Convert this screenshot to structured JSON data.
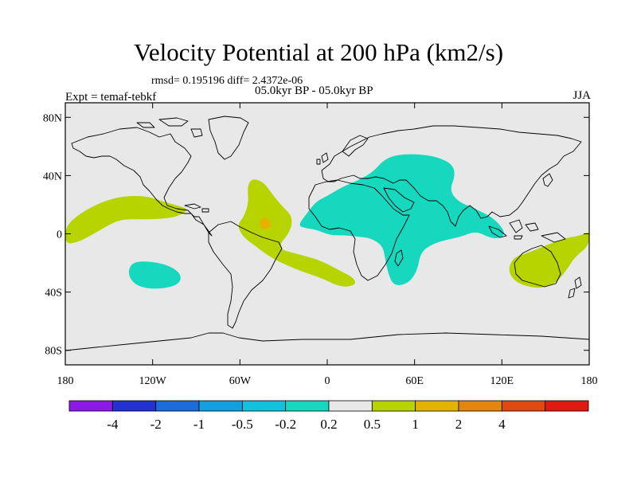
{
  "title": "Velocity Potential at 200 hPa (km2/s)",
  "stats": "rmsd= 0.195196 diff= 2.4372e-06",
  "experiment": "Expt = temaf-tebkf",
  "period": "05.0kyr BP - 05.0kyr BP",
  "season": "JJA",
  "map": {
    "lon_range": [
      -180,
      180
    ],
    "lat_range": [
      -90,
      90
    ],
    "lon_ticks": [
      {
        "value": -180,
        "label": "180"
      },
      {
        "value": -120,
        "label": "120W"
      },
      {
        "value": -60,
        "label": "60W"
      },
      {
        "value": 0,
        "label": "0"
      },
      {
        "value": 60,
        "label": "60E"
      },
      {
        "value": 120,
        "label": "120E"
      },
      {
        "value": 180,
        "label": "180"
      }
    ],
    "lat_ticks": [
      {
        "value": 80,
        "label": "80N"
      },
      {
        "value": 40,
        "label": "40N"
      },
      {
        "value": 0,
        "label": "0"
      },
      {
        "value": -40,
        "label": "40S"
      },
      {
        "value": -80,
        "label": "80S"
      }
    ],
    "background_color": "#e8e8e8",
    "coast_color": "#000000",
    "contour_regions": [
      {
        "name": "western-pacific-positive",
        "level": "0.2 to 0.5",
        "color": "#b8d400",
        "points": [
          [
            -180,
            5
          ],
          [
            -170,
            14
          ],
          [
            -155,
            22
          ],
          [
            -140,
            26
          ],
          [
            -125,
            26
          ],
          [
            -115,
            23
          ],
          [
            -102,
            19
          ],
          [
            -95,
            17
          ],
          [
            -102,
            12
          ],
          [
            -115,
            10
          ],
          [
            -128,
            10
          ],
          [
            -142,
            10
          ],
          [
            -152,
            5
          ],
          [
            -162,
            -1
          ],
          [
            -172,
            -6
          ],
          [
            -180,
            -7
          ]
        ]
      },
      {
        "name": "atlantic-south-america-positive",
        "level": "0.2 to 0.5",
        "color": "#b8d400",
        "points": [
          [
            -52,
            38
          ],
          [
            -44,
            36
          ],
          [
            -37,
            26
          ],
          [
            -30,
            18
          ],
          [
            -24,
            12
          ],
          [
            -25,
            2
          ],
          [
            -35,
            -10
          ],
          [
            -20,
            -14
          ],
          [
            -5,
            -18
          ],
          [
            8,
            -25
          ],
          [
            18,
            -30
          ],
          [
            20,
            -35
          ],
          [
            10,
            -37
          ],
          [
            -5,
            -30
          ],
          [
            -20,
            -25
          ],
          [
            -38,
            -17
          ],
          [
            -50,
            -8
          ],
          [
            -58,
            -2
          ],
          [
            -62,
            6
          ],
          [
            -57,
            12
          ],
          [
            -54,
            22
          ],
          [
            -55,
            32
          ]
        ]
      },
      {
        "name": "atlantic-positive-core",
        "level": "0.5 to 1",
        "color": "#e2b400",
        "points": [
          [
            -44,
            12
          ],
          [
            -40,
            10
          ],
          [
            -38,
            6
          ],
          [
            -41,
            3
          ],
          [
            -45,
            3
          ],
          [
            -47,
            7
          ]
        ]
      },
      {
        "name": "australia-positive",
        "level": "0.2 to 0.5",
        "color": "#b8d400",
        "points": [
          [
            138,
            -13
          ],
          [
            150,
            -8
          ],
          [
            163,
            -3
          ],
          [
            175,
            -1
          ],
          [
            180,
            2
          ],
          [
            180,
            -8
          ],
          [
            170,
            -16
          ],
          [
            165,
            -24
          ],
          [
            158,
            -33
          ],
          [
            150,
            -37
          ],
          [
            140,
            -37
          ],
          [
            129,
            -33
          ],
          [
            124,
            -25
          ],
          [
            128,
            -16
          ]
        ]
      },
      {
        "name": "eurasia-africa-negative",
        "level": "-0.5 to -0.2",
        "color": "#16d8be",
        "points": [
          [
            -20,
            6
          ],
          [
            -14,
            14
          ],
          [
            -8,
            22
          ],
          [
            0,
            26
          ],
          [
            10,
            32
          ],
          [
            22,
            37
          ],
          [
            32,
            43
          ],
          [
            38,
            50
          ],
          [
            46,
            54
          ],
          [
            60,
            55
          ],
          [
            75,
            53
          ],
          [
            86,
            48
          ],
          [
            88,
            40
          ],
          [
            84,
            30
          ],
          [
            90,
            22
          ],
          [
            100,
            18
          ],
          [
            108,
            14
          ],
          [
            112,
            12
          ],
          [
            118,
            7
          ],
          [
            122,
            1
          ],
          [
            120,
            -3
          ],
          [
            112,
            -3
          ],
          [
            102,
            2
          ],
          [
            92,
            -2
          ],
          [
            82,
            -4
          ],
          [
            72,
            -7
          ],
          [
            64,
            -13
          ],
          [
            62,
            -25
          ],
          [
            56,
            -34
          ],
          [
            46,
            -36
          ],
          [
            42,
            -28
          ],
          [
            40,
            -18
          ],
          [
            38,
            -8
          ],
          [
            30,
            -3
          ],
          [
            22,
            -2
          ],
          [
            12,
            -1
          ],
          [
            2,
            -1
          ],
          [
            -8,
            3
          ],
          [
            -16,
            4
          ]
        ]
      },
      {
        "name": "south-pacific-negative",
        "level": "-0.5 to -0.2",
        "color": "#16d8be",
        "points": [
          [
            -133,
            -19
          ],
          [
            -120,
            -19
          ],
          [
            -108,
            -22
          ],
          [
            -100,
            -28
          ],
          [
            -102,
            -35
          ],
          [
            -115,
            -38
          ],
          [
            -128,
            -37
          ],
          [
            -135,
            -32
          ],
          [
            -137,
            -25
          ]
        ]
      }
    ]
  },
  "colorbar": {
    "levels": [
      {
        "color": "#8c1ae6",
        "label": ""
      },
      {
        "color": "#2330d2",
        "label": "-4"
      },
      {
        "color": "#1a6cd8",
        "label": "-2"
      },
      {
        "color": "#12a0e0",
        "label": "-1"
      },
      {
        "color": "#12c2dc",
        "label": "-0.5"
      },
      {
        "color": "#16d8be",
        "label": "-0.2"
      },
      {
        "color": "#e8e8e8",
        "label": "0.2"
      },
      {
        "color": "#b8d400",
        "label": "0.5"
      },
      {
        "color": "#e2b400",
        "label": "1"
      },
      {
        "color": "#e2860e",
        "label": "2"
      },
      {
        "color": "#e04a10",
        "label": "4"
      },
      {
        "color": "#e01a10",
        "label": ""
      }
    ]
  }
}
